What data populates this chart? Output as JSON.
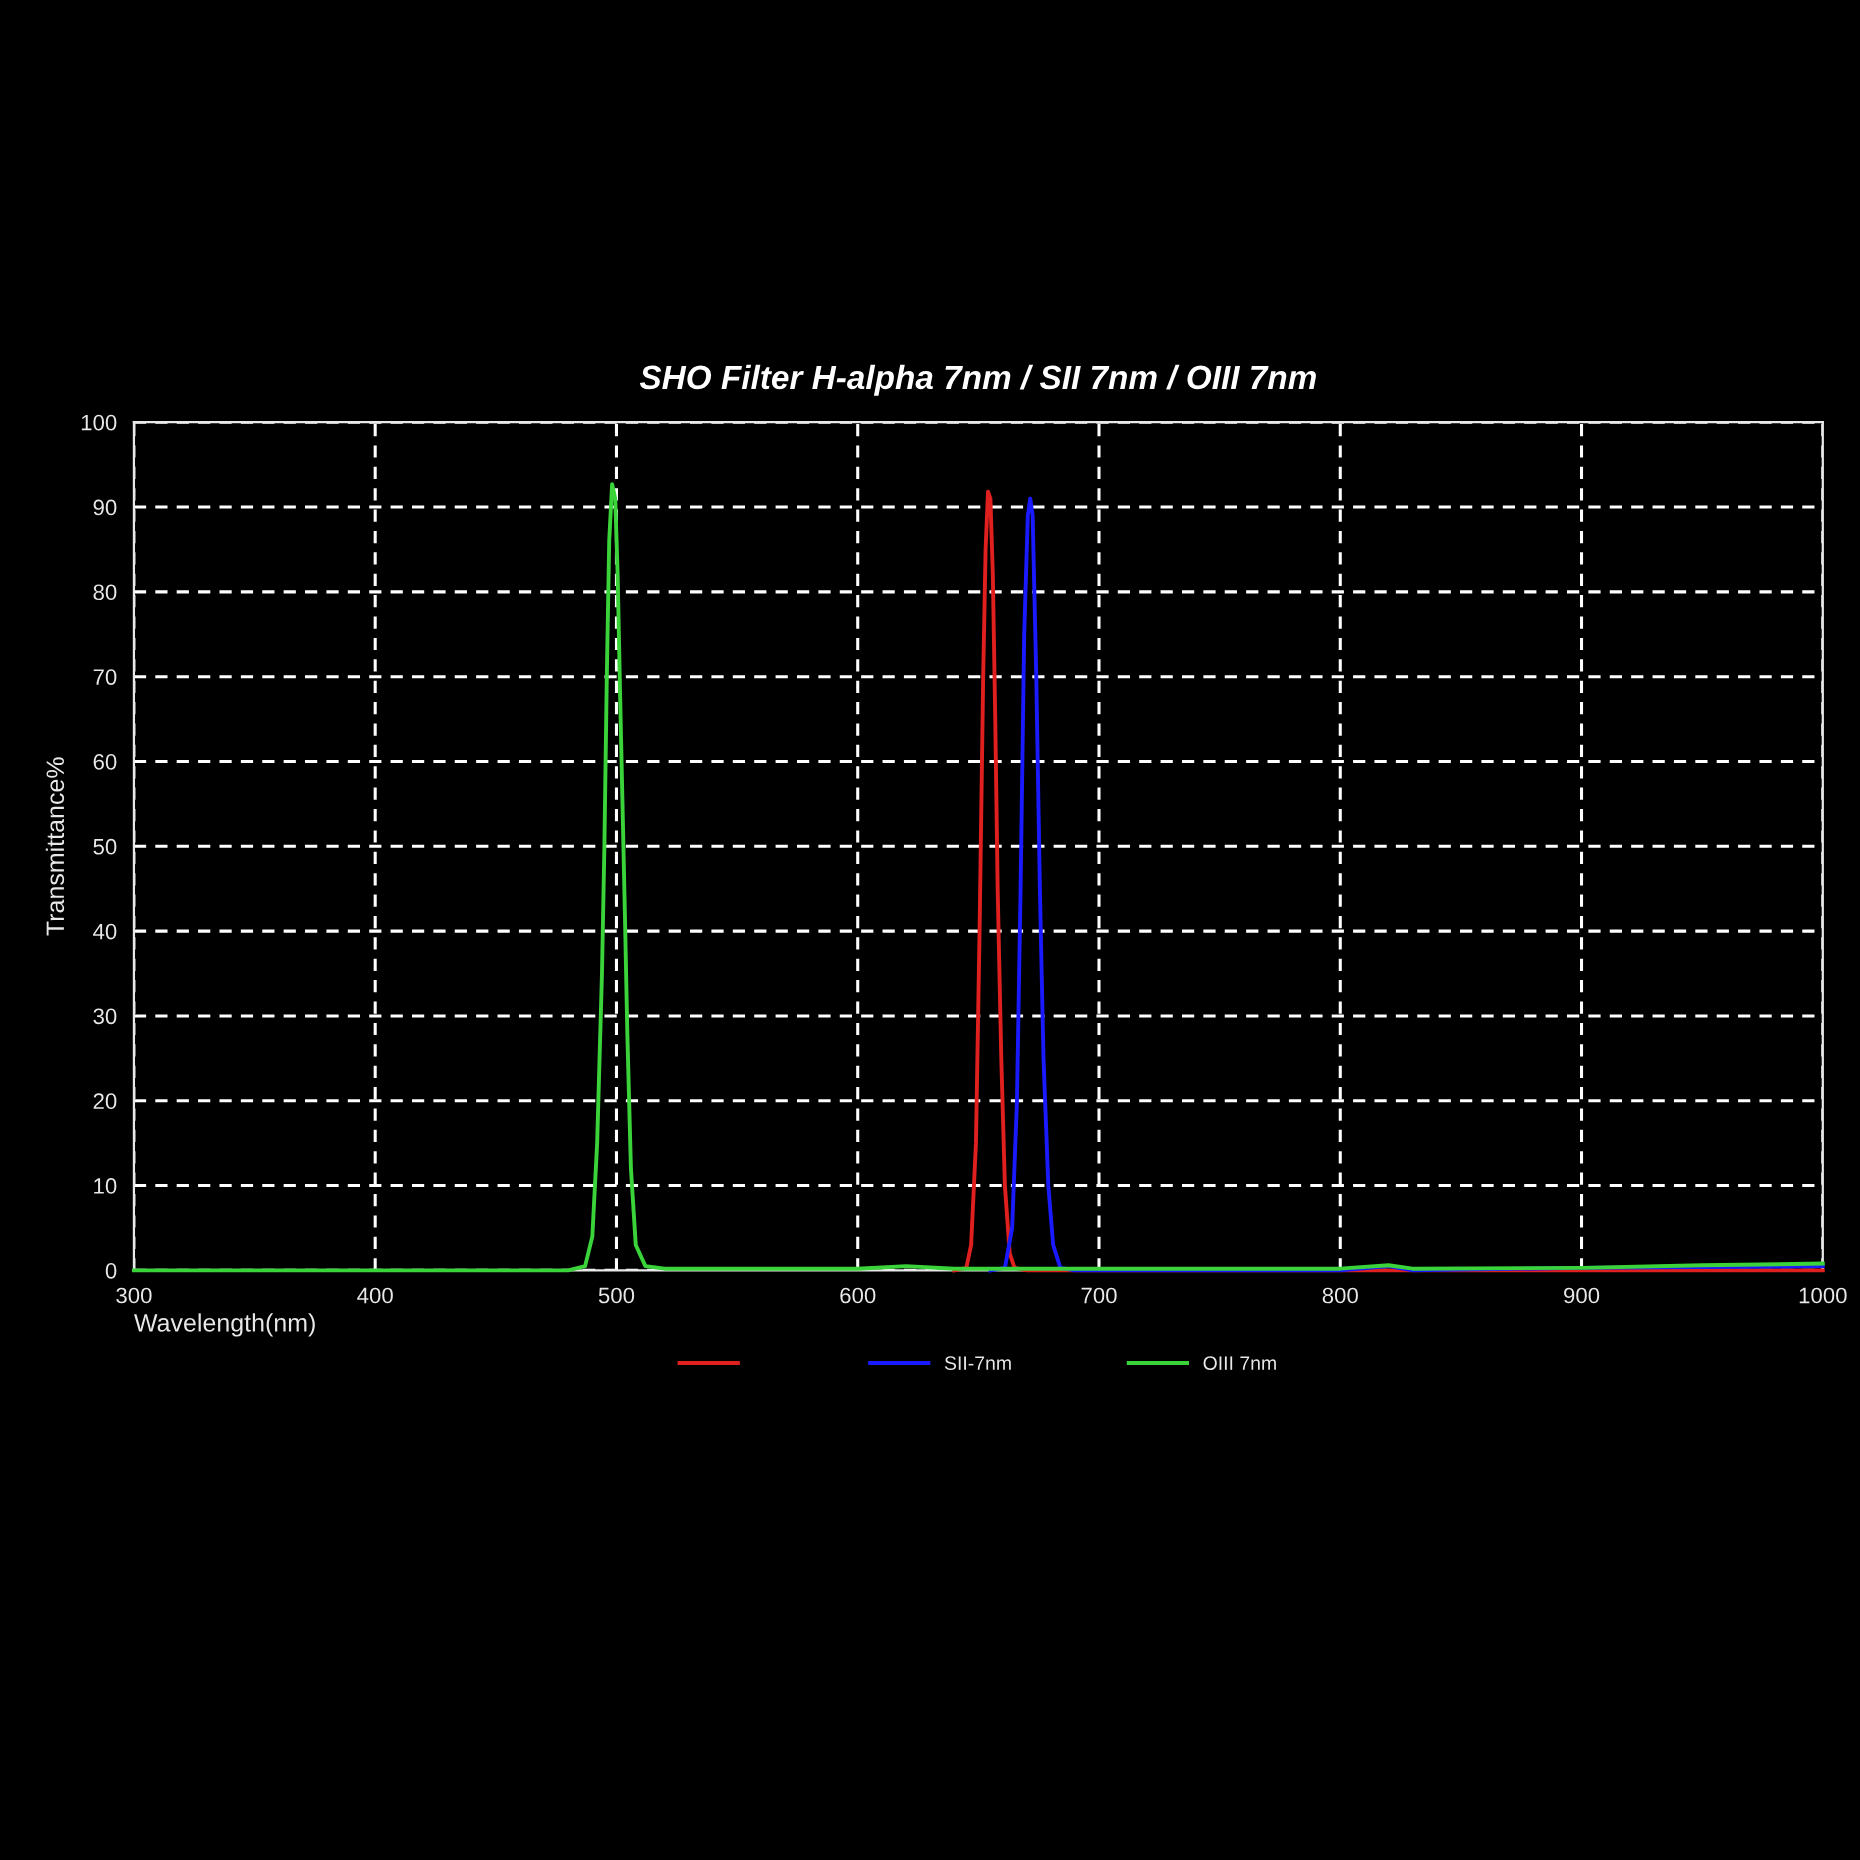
{
  "chart_data": {
    "type": "line",
    "title": "SHO Filter H-alpha 7nm / SII 7nm / OIII 7nm",
    "xlabel": "Wavelength(nm)",
    "ylabel": "Transmittance%",
    "xlim": [
      300,
      1000
    ],
    "xticks": [
      300,
      400,
      500,
      600,
      700,
      800,
      900,
      1000
    ],
    "ylim": [
      0,
      100
    ],
    "yticks": [
      0,
      10,
      20,
      30,
      40,
      50,
      60,
      70,
      80,
      90,
      100
    ],
    "grid": true,
    "legend": "bottom",
    "line_style": "solid",
    "marker": "none",
    "series": [
      {
        "color": "#e0201e",
        "x": [
          640,
          645,
          647,
          649,
          650.5,
          652,
          653,
          654,
          655,
          656,
          657,
          658,
          659.5,
          661,
          663,
          665,
          670,
          700,
          1000
        ],
        "values": [
          0,
          0.3,
          3,
          15,
          40,
          70,
          85,
          91.8,
          91,
          82,
          65,
          45,
          25,
          10,
          2,
          0.3,
          0,
          0,
          0
        ]
      },
      {
        "name": "SII-7nm",
        "color": "#1a1aff",
        "x": [
          655,
          661,
          664,
          666,
          667.5,
          669,
          670.5,
          671.5,
          672.5,
          674,
          675.5,
          677,
          679,
          681,
          684,
          690,
          700,
          800,
          820,
          830,
          900,
          1000
        ],
        "values": [
          0,
          0.3,
          5,
          20,
          45,
          75,
          89,
          91,
          89,
          70,
          45,
          25,
          10,
          3,
          0.3,
          0,
          0,
          0,
          0.5,
          0,
          0.3,
          0.5
        ]
      },
      {
        "name": "OIII 7nm",
        "color": "#3ad43a",
        "x": [
          300,
          480,
          487,
          490,
          492,
          494,
          495,
          496,
          497,
          498.2,
          499.5,
          500.5,
          501.5,
          502.5,
          503.5,
          504.5,
          506,
          508,
          512,
          520,
          600,
          620,
          640,
          800,
          820,
          830,
          900,
          950,
          1000
        ],
        "values": [
          0,
          0,
          0.5,
          4,
          15,
          35,
          50,
          70,
          86,
          92.7,
          91,
          82,
          68,
          55,
          42,
          28,
          12,
          3,
          0.5,
          0.2,
          0.2,
          0.5,
          0.2,
          0.2,
          0.6,
          0.2,
          0.3,
          0.6,
          0.8
        ]
      }
    ]
  }
}
